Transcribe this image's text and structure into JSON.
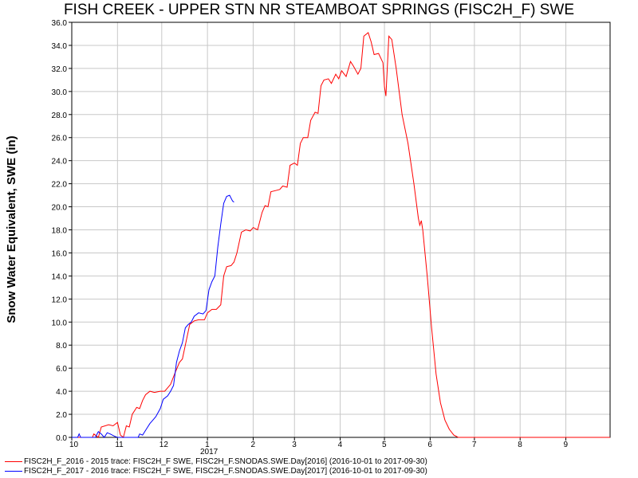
{
  "chart_data": {
    "type": "line",
    "title": "FISH CREEK - UPPER STN NR STEAMBOAT SPRINGS (FISC2H_F) SWE",
    "ylabel": "Snow Water Equivalent, SWE (in)",
    "xlabel": "",
    "ylim": [
      0,
      36
    ],
    "xlim": [
      0,
      365
    ],
    "year_label": "2017",
    "y_ticks": [
      "0.0",
      "2.0",
      "4.0",
      "6.0",
      "8.0",
      "10.0",
      "12.0",
      "14.0",
      "16.0",
      "18.0",
      "20.0",
      "22.0",
      "24.0",
      "26.0",
      "28.0",
      "30.0",
      "32.0",
      "34.0",
      "36.0"
    ],
    "x_ticks": [
      {
        "label": "10",
        "day": 0
      },
      {
        "label": "11",
        "day": 31
      },
      {
        "label": "12",
        "day": 61
      },
      {
        "label": "1",
        "day": 92
      },
      {
        "label": "2",
        "day": 123
      },
      {
        "label": "3",
        "day": 151
      },
      {
        "label": "4",
        "day": 182
      },
      {
        "label": "5",
        "day": 212
      },
      {
        "label": "6",
        "day": 243
      },
      {
        "label": "7",
        "day": 273
      },
      {
        "label": "8",
        "day": 304
      },
      {
        "label": "9",
        "day": 335
      }
    ],
    "grid": true,
    "legend_position": "bottom",
    "series": [
      {
        "name": "FISC2H_F_2016 - 2015 trace: FISC2H_F SWE, FISC2H_F.SNODAS.SWE.Day[2016] (2016-10-01 to 2017-09-30)",
        "color": "#ff0000",
        "points": [
          [
            0,
            0
          ],
          [
            14,
            0
          ],
          [
            15,
            0.3
          ],
          [
            18,
            0
          ],
          [
            20,
            0.9
          ],
          [
            25,
            1.1
          ],
          [
            28,
            1.0
          ],
          [
            31,
            1.3
          ],
          [
            33,
            0.2
          ],
          [
            35,
            0
          ],
          [
            37,
            1.0
          ],
          [
            39,
            0.9
          ],
          [
            41,
            2.0
          ],
          [
            44,
            2.6
          ],
          [
            46,
            2.5
          ],
          [
            48,
            3.2
          ],
          [
            50,
            3.7
          ],
          [
            53,
            4.0
          ],
          [
            56,
            3.9
          ],
          [
            60,
            4.0
          ],
          [
            63,
            4.0
          ],
          [
            65,
            4.3
          ],
          [
            67,
            4.6
          ],
          [
            70,
            5.6
          ],
          [
            73,
            6.5
          ],
          [
            75,
            6.8
          ],
          [
            77,
            8.0
          ],
          [
            80,
            9.8
          ],
          [
            83,
            10.1
          ],
          [
            86,
            10.2
          ],
          [
            90,
            10.2
          ],
          [
            92,
            10.8
          ],
          [
            95,
            11.1
          ],
          [
            98,
            11.1
          ],
          [
            101,
            11.5
          ],
          [
            103,
            14.0
          ],
          [
            105,
            14.8
          ],
          [
            108,
            14.9
          ],
          [
            110,
            15.2
          ],
          [
            112,
            16.0
          ],
          [
            115,
            17.8
          ],
          [
            118,
            18.0
          ],
          [
            121,
            17.9
          ],
          [
            123,
            18.2
          ],
          [
            126,
            18.0
          ],
          [
            129,
            19.5
          ],
          [
            131,
            20.1
          ],
          [
            133,
            20.0
          ],
          [
            135,
            21.3
          ],
          [
            138,
            21.4
          ],
          [
            141,
            21.5
          ],
          [
            143,
            21.8
          ],
          [
            146,
            21.7
          ],
          [
            148,
            23.6
          ],
          [
            151,
            23.8
          ],
          [
            153,
            23.6
          ],
          [
            155,
            25.5
          ],
          [
            157,
            26.0
          ],
          [
            160,
            26.0
          ],
          [
            162,
            27.5
          ],
          [
            165,
            28.2
          ],
          [
            167,
            28.1
          ],
          [
            169,
            30.5
          ],
          [
            171,
            31.0
          ],
          [
            174,
            31.1
          ],
          [
            176,
            30.7
          ],
          [
            179,
            31.5
          ],
          [
            181,
            31.1
          ],
          [
            183,
            31.8
          ],
          [
            186,
            31.3
          ],
          [
            189,
            32.6
          ],
          [
            191,
            32.2
          ],
          [
            194,
            31.5
          ],
          [
            196,
            32.0
          ],
          [
            198,
            34.8
          ],
          [
            201,
            35.1
          ],
          [
            203,
            34.3
          ],
          [
            205,
            33.2
          ],
          [
            208,
            33.3
          ],
          [
            211,
            32.5
          ],
          [
            212,
            30.4
          ],
          [
            213,
            29.6
          ],
          [
            215,
            34.8
          ],
          [
            217,
            34.5
          ],
          [
            220,
            32.0
          ],
          [
            224,
            28.0
          ],
          [
            228,
            25.5
          ],
          [
            232,
            22.0
          ],
          [
            235,
            19.0
          ],
          [
            236,
            18.4
          ],
          [
            237,
            18.8
          ],
          [
            238,
            18.0
          ],
          [
            241,
            14.0
          ],
          [
            244,
            9.5
          ],
          [
            247,
            5.5
          ],
          [
            250,
            3.0
          ],
          [
            253,
            1.5
          ],
          [
            256,
            0.7
          ],
          [
            259,
            0.2
          ],
          [
            262,
            0
          ],
          [
            365,
            0
          ]
        ]
      },
      {
        "name": "FISC2H_F_2017 - 2016 trace: FISC2H_F SWE, FISC2H_F.SNODAS.SWE.Day[2017] (2016-10-01 to 2017-09-30)",
        "color": "#0000ff",
        "points": [
          [
            0,
            0
          ],
          [
            4,
            0
          ],
          [
            5,
            0.3
          ],
          [
            6,
            0
          ],
          [
            16,
            0
          ],
          [
            18,
            0.5
          ],
          [
            20,
            0.3
          ],
          [
            22,
            0
          ],
          [
            24,
            0.4
          ],
          [
            26,
            0.3
          ],
          [
            29,
            0.1
          ],
          [
            31,
            0
          ],
          [
            45,
            0
          ],
          [
            46,
            0.3
          ],
          [
            48,
            0.2
          ],
          [
            51,
            0.8
          ],
          [
            53,
            1.2
          ],
          [
            55,
            1.5
          ],
          [
            57,
            1.8
          ],
          [
            60,
            2.5
          ],
          [
            62,
            3.3
          ],
          [
            65,
            3.6
          ],
          [
            67,
            4.0
          ],
          [
            69,
            4.5
          ],
          [
            71,
            6.5
          ],
          [
            73,
            7.5
          ],
          [
            75,
            8.2
          ],
          [
            77,
            9.5
          ],
          [
            79,
            9.8
          ],
          [
            81,
            10.0
          ],
          [
            83,
            10.5
          ],
          [
            86,
            10.8
          ],
          [
            89,
            10.7
          ],
          [
            91,
            11.0
          ],
          [
            93,
            12.8
          ],
          [
            95,
            13.5
          ],
          [
            97,
            14.0
          ],
          [
            99,
            16.5
          ],
          [
            101,
            18.5
          ],
          [
            103,
            20.3
          ],
          [
            105,
            20.9
          ],
          [
            107,
            21.0
          ],
          [
            109,
            20.5
          ],
          [
            110,
            20.4
          ]
        ]
      }
    ]
  },
  "legend": {
    "entries": [
      {
        "text": "FISC2H_F_2016 - 2015 trace: FISC2H_F SWE, FISC2H_F.SNODAS.SWE.Day[2016] (2016-10-01 to 2017-09-30)",
        "color": "#ff0000"
      },
      {
        "text": "FISC2H_F_2017 - 2016 trace: FISC2H_F SWE, FISC2H_F.SNODAS.SWE.Day[2017] (2016-10-01 to 2017-09-30)",
        "color": "#0000ff"
      }
    ]
  }
}
